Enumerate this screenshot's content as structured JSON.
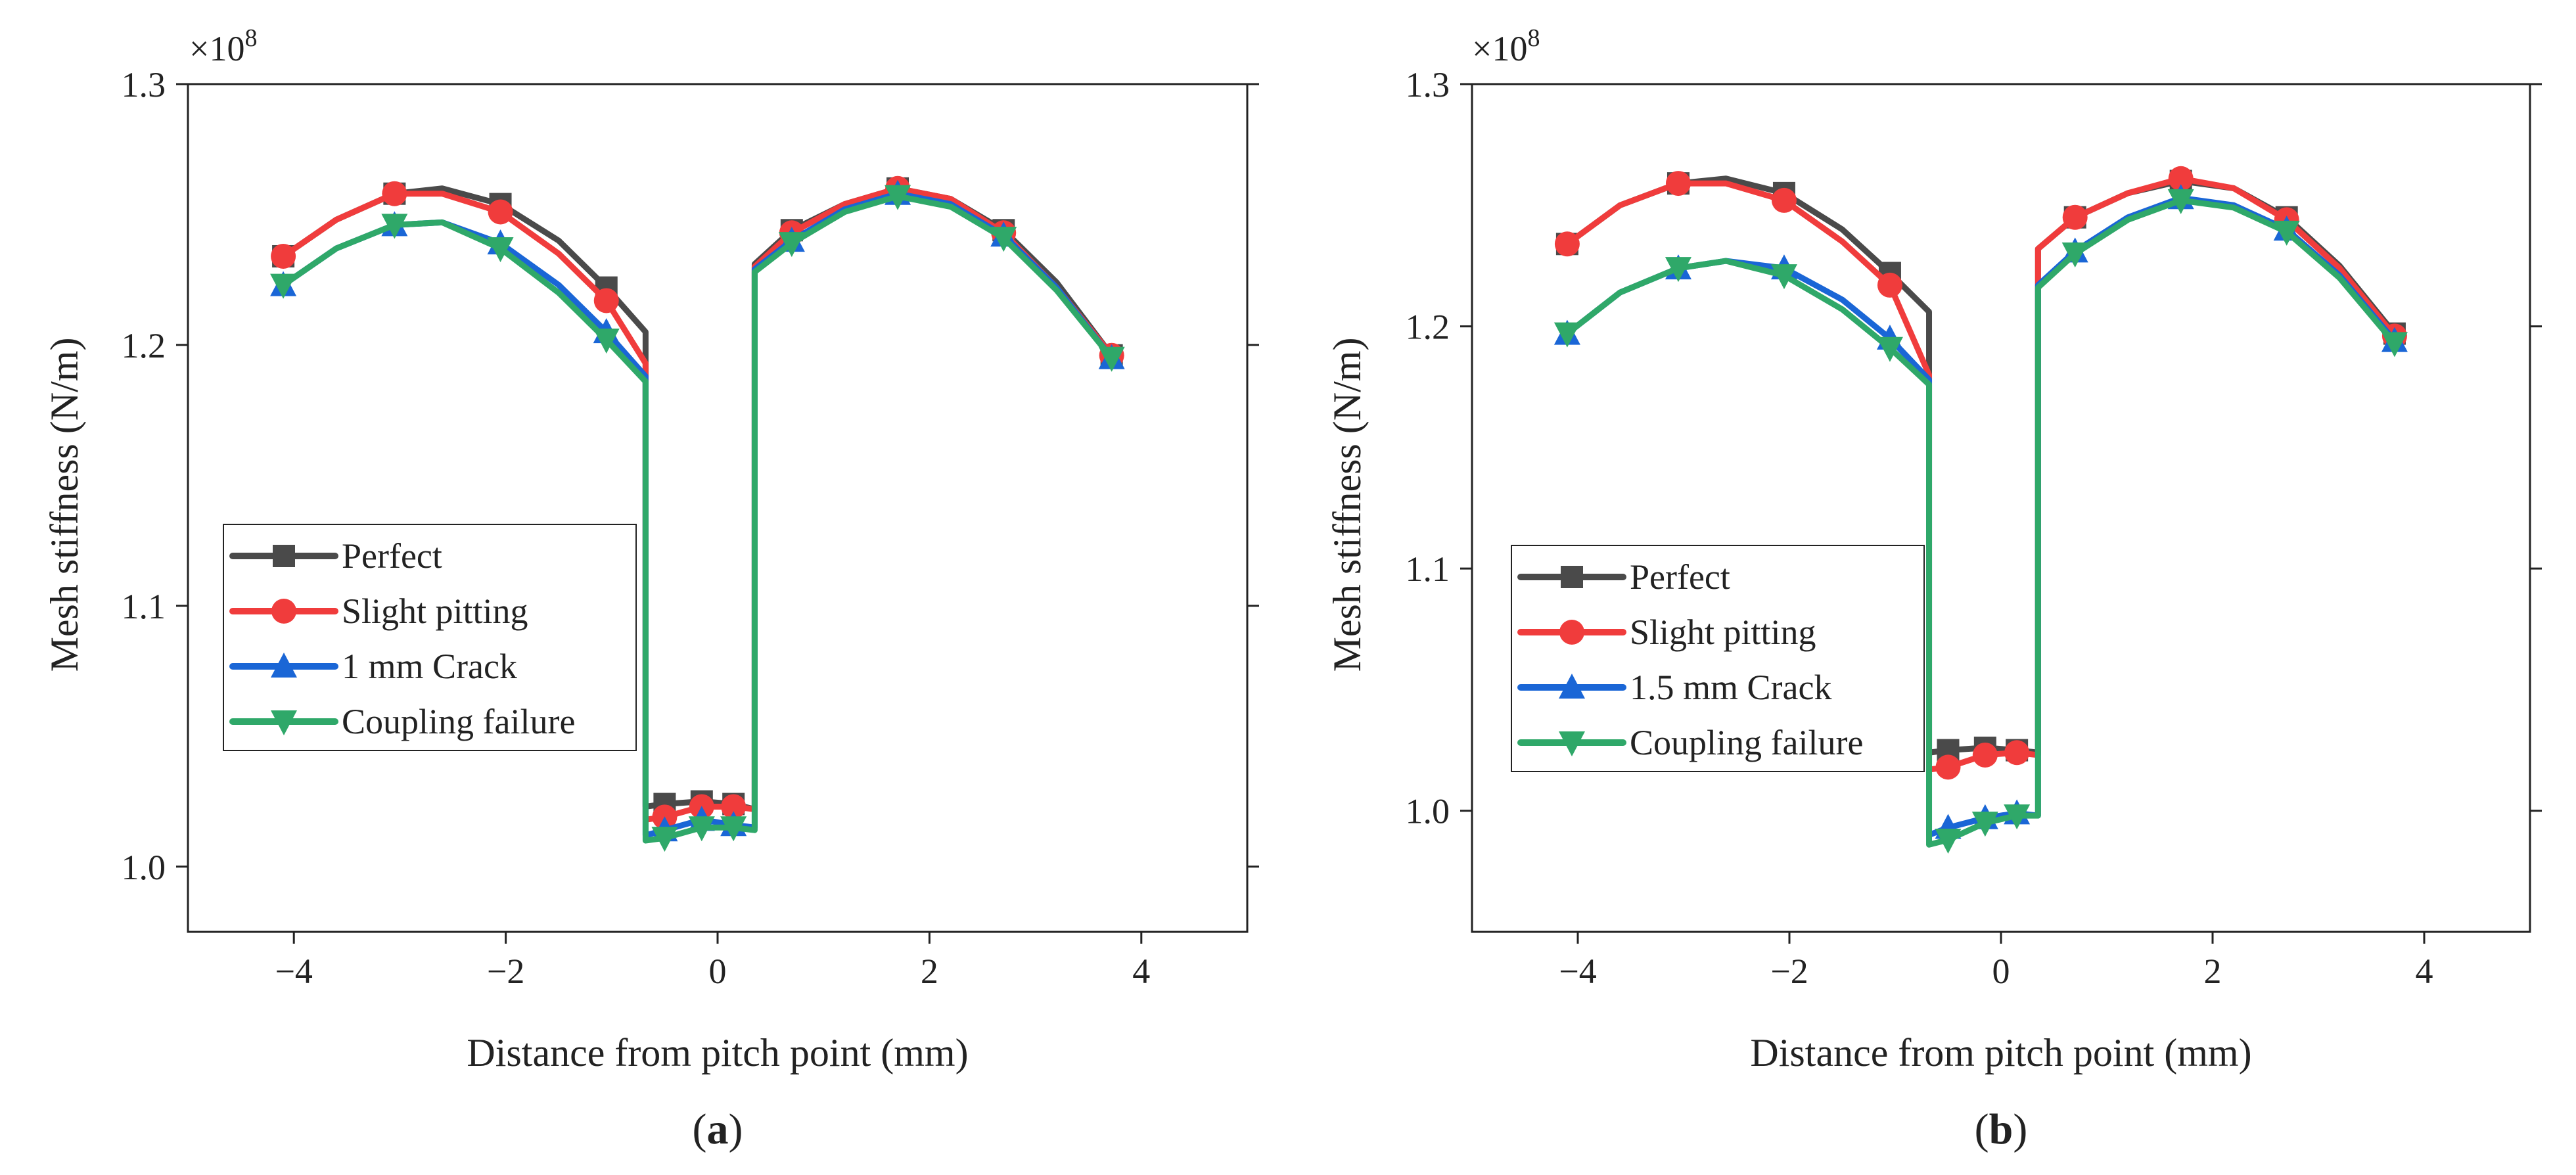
{
  "chart_data": [
    {
      "type": "line",
      "panel_label": "(a)",
      "panel_letter": "a",
      "xlabel": "Distance from pitch point (mm)",
      "ylabel": "Mesh stiffness (N/m)",
      "y_multiplier_label": "×10",
      "y_multiplier_exponent": "8",
      "xlim": [
        -5,
        5
      ],
      "ylim": [
        0.975,
        1.3
      ],
      "xticks": [
        -4,
        -2,
        0,
        2,
        4
      ],
      "xtick_labels": [
        "−4",
        "−2",
        "0",
        "2",
        "4"
      ],
      "yticks": [
        1.0,
        1.1,
        1.2,
        1.3
      ],
      "ytick_labels": [
        "1.0",
        "1.1",
        "1.2",
        "1.3"
      ],
      "legend": [
        "Perfect",
        "Slight pitting",
        "1 mm Crack",
        "Coupling failure"
      ],
      "series": [
        {
          "name": "Perfect",
          "color": "#4a4a4a",
          "marker": "square",
          "x": [
            -4.1,
            -3.6,
            -3.05,
            -2.6,
            -2.05,
            -1.5,
            -1.05,
            -0.68,
            -0.68,
            -0.5,
            -0.15,
            0.15,
            0.35,
            0.35,
            0.7,
            1.2,
            1.7,
            2.2,
            2.7,
            3.2,
            3.72
          ],
          "y": [
            1.234,
            1.248,
            1.258,
            1.26,
            1.254,
            1.24,
            1.222,
            1.205,
            1.023,
            1.024,
            1.025,
            1.024,
            1.022,
            1.231,
            1.244,
            1.254,
            1.26,
            1.256,
            1.244,
            1.224,
            1.196
          ],
          "markers_x": [
            -4.1,
            -3.05,
            -2.05,
            -1.05,
            -0.5,
            -0.15,
            0.15,
            0.7,
            1.7,
            2.7,
            3.72
          ],
          "markers_y": [
            1.234,
            1.258,
            1.254,
            1.222,
            1.024,
            1.025,
            1.024,
            1.244,
            1.26,
            1.244,
            1.196
          ]
        },
        {
          "name": "Slight pitting",
          "color": "#f03c3c",
          "marker": "circle",
          "x": [
            -4.1,
            -3.6,
            -3.05,
            -2.6,
            -2.05,
            -1.5,
            -1.05,
            -0.68,
            -0.68,
            -0.5,
            -0.15,
            0.15,
            0.35,
            0.35,
            0.7,
            1.2,
            1.7,
            2.2,
            2.7,
            3.2,
            3.72
          ],
          "y": [
            1.234,
            1.248,
            1.258,
            1.258,
            1.251,
            1.235,
            1.217,
            1.193,
            1.018,
            1.019,
            1.023,
            1.023,
            1.022,
            1.23,
            1.243,
            1.254,
            1.26,
            1.256,
            1.243,
            1.222,
            1.196
          ],
          "markers_x": [
            -4.1,
            -3.05,
            -2.05,
            -1.05,
            -0.5,
            -0.15,
            0.15,
            0.7,
            1.7,
            2.7,
            3.72
          ],
          "markers_y": [
            1.234,
            1.258,
            1.251,
            1.217,
            1.019,
            1.023,
            1.023,
            1.243,
            1.26,
            1.243,
            1.196
          ]
        },
        {
          "name": "1 mm Crack",
          "color": "#1a66d6",
          "marker": "triangle-up",
          "x": [
            -4.1,
            -3.6,
            -3.05,
            -2.6,
            -2.05,
            -1.5,
            -1.05,
            -0.68,
            -0.68,
            -0.5,
            -0.15,
            0.15,
            0.35,
            0.35,
            0.7,
            1.2,
            1.7,
            2.2,
            2.7,
            3.2,
            3.72
          ],
          "y": [
            1.223,
            1.237,
            1.246,
            1.247,
            1.239,
            1.223,
            1.205,
            1.188,
            1.012,
            1.014,
            1.018,
            1.016,
            1.015,
            1.229,
            1.24,
            1.252,
            1.258,
            1.254,
            1.242,
            1.222,
            1.195
          ],
          "markers_x": [
            -4.1,
            -3.05,
            -2.05,
            -1.05,
            -0.5,
            -0.15,
            0.15,
            0.7,
            1.7,
            2.7,
            3.72
          ],
          "markers_y": [
            1.223,
            1.246,
            1.239,
            1.205,
            1.014,
            1.018,
            1.016,
            1.24,
            1.258,
            1.242,
            1.195
          ]
        },
        {
          "name": "Coupling failure",
          "color": "#2fa869",
          "marker": "triangle-down",
          "x": [
            -4.1,
            -3.6,
            -3.05,
            -2.6,
            -2.05,
            -1.5,
            -1.05,
            -0.68,
            -0.68,
            -0.5,
            -0.15,
            0.15,
            0.35,
            0.35,
            0.7,
            1.2,
            1.7,
            2.2,
            2.7,
            3.2,
            3.72
          ],
          "y": [
            1.223,
            1.237,
            1.246,
            1.247,
            1.237,
            1.22,
            1.202,
            1.186,
            1.01,
            1.011,
            1.015,
            1.015,
            1.014,
            1.228,
            1.239,
            1.251,
            1.257,
            1.253,
            1.241,
            1.221,
            1.195
          ],
          "markers_x": [
            -4.1,
            -3.05,
            -2.05,
            -1.05,
            -0.5,
            -0.15,
            0.15,
            0.7,
            1.7,
            2.7,
            3.72
          ],
          "markers_y": [
            1.223,
            1.246,
            1.237,
            1.202,
            1.011,
            1.015,
            1.015,
            1.239,
            1.257,
            1.241,
            1.195
          ]
        }
      ]
    },
    {
      "type": "line",
      "panel_label": "(b)",
      "panel_letter": "b",
      "xlabel": "Distance from pitch point (mm)",
      "ylabel": "Mesh stiffness (N/m)",
      "y_multiplier_label": "×10",
      "y_multiplier_exponent": "8",
      "xlim": [
        -5,
        5
      ],
      "ylim": [
        0.95,
        1.3
      ],
      "xticks": [
        -4,
        -2,
        0,
        2,
        4
      ],
      "xtick_labels": [
        "−4",
        "−2",
        "0",
        "2",
        "4"
      ],
      "yticks": [
        1.0,
        1.1,
        1.2,
        1.3
      ],
      "ytick_labels": [
        "1.0",
        "1.1",
        "1.2",
        "1.3"
      ],
      "legend": [
        "Perfect",
        "Slight pitting",
        "1.5 mm Crack",
        "Coupling failure"
      ],
      "series": [
        {
          "name": "Perfect",
          "color": "#4a4a4a",
          "marker": "square",
          "x": [
            -4.1,
            -3.6,
            -3.05,
            -2.6,
            -2.05,
            -1.5,
            -1.05,
            -0.68,
            -0.68,
            -0.5,
            -0.15,
            0.15,
            0.35,
            0.35,
            0.7,
            1.2,
            1.7,
            2.2,
            2.7,
            3.2,
            3.72
          ],
          "y": [
            1.234,
            1.25,
            1.259,
            1.261,
            1.255,
            1.24,
            1.222,
            1.206,
            1.024,
            1.025,
            1.026,
            1.025,
            1.024,
            1.232,
            1.245,
            1.255,
            1.26,
            1.257,
            1.245,
            1.225,
            1.197
          ],
          "markers_x": [
            -4.1,
            -3.05,
            -2.05,
            -1.05,
            -0.5,
            -0.15,
            0.15,
            0.7,
            1.7,
            2.7,
            3.72
          ],
          "markers_y": [
            1.234,
            1.259,
            1.255,
            1.222,
            1.025,
            1.026,
            1.025,
            1.245,
            1.26,
            1.245,
            1.197
          ]
        },
        {
          "name": "Slight pitting",
          "color": "#f03c3c",
          "marker": "circle",
          "x": [
            -4.1,
            -3.6,
            -3.05,
            -2.6,
            -2.05,
            -1.5,
            -1.05,
            -0.68,
            -0.68,
            -0.5,
            -0.15,
            0.15,
            0.35,
            0.35,
            0.7,
            1.2,
            1.7,
            2.2,
            2.7,
            3.2,
            3.72
          ],
          "y": [
            1.234,
            1.25,
            1.259,
            1.259,
            1.252,
            1.235,
            1.217,
            1.18,
            1.017,
            1.018,
            1.023,
            1.024,
            1.023,
            1.232,
            1.245,
            1.255,
            1.261,
            1.257,
            1.244,
            1.224,
            1.196
          ],
          "markers_x": [
            -4.1,
            -3.05,
            -2.05,
            -1.05,
            -0.5,
            -0.15,
            0.15,
            0.7,
            1.7,
            2.7,
            3.72
          ],
          "markers_y": [
            1.234,
            1.259,
            1.252,
            1.217,
            1.018,
            1.023,
            1.024,
            1.245,
            1.261,
            1.244,
            1.196
          ]
        },
        {
          "name": "1.5 mm Crack",
          "color": "#1a66d6",
          "marker": "triangle-up",
          "x": [
            -4.1,
            -3.6,
            -3.05,
            -2.6,
            -2.05,
            -1.5,
            -1.05,
            -0.68,
            -0.68,
            -0.5,
            -0.15,
            0.15,
            0.35,
            0.35,
            0.7,
            1.2,
            1.7,
            2.2,
            2.7,
            3.2,
            3.72
          ],
          "y": [
            1.197,
            1.214,
            1.224,
            1.227,
            1.224,
            1.211,
            1.195,
            1.178,
            0.99,
            0.993,
            0.997,
            0.999,
            0.998,
            1.217,
            1.231,
            1.245,
            1.253,
            1.25,
            1.24,
            1.221,
            1.194
          ],
          "markers_x": [
            -4.1,
            -3.05,
            -2.05,
            -1.05,
            -0.5,
            -0.15,
            0.15,
            0.7,
            1.7,
            2.7,
            3.72
          ],
          "markers_y": [
            1.197,
            1.224,
            1.224,
            1.195,
            0.993,
            0.997,
            0.999,
            1.231,
            1.253,
            1.24,
            1.194
          ]
        },
        {
          "name": "Coupling failure",
          "color": "#2fa869",
          "marker": "triangle-down",
          "x": [
            -4.1,
            -3.6,
            -3.05,
            -2.6,
            -2.05,
            -1.5,
            -1.05,
            -0.68,
            -0.68,
            -0.5,
            -0.15,
            0.15,
            0.35,
            0.35,
            0.7,
            1.2,
            1.7,
            2.2,
            2.7,
            3.2,
            3.72
          ],
          "y": [
            1.197,
            1.214,
            1.224,
            1.227,
            1.221,
            1.207,
            1.191,
            1.176,
            0.986,
            0.988,
            0.995,
            0.998,
            0.998,
            1.216,
            1.23,
            1.244,
            1.252,
            1.249,
            1.239,
            1.22,
            1.193
          ],
          "markers_x": [
            -4.1,
            -3.05,
            -2.05,
            -1.05,
            -0.5,
            -0.15,
            0.15,
            0.7,
            1.7,
            2.7,
            3.72
          ],
          "markers_y": [
            1.197,
            1.224,
            1.221,
            1.191,
            0.988,
            0.995,
            0.998,
            1.23,
            1.252,
            1.239,
            1.193
          ]
        }
      ]
    }
  ]
}
